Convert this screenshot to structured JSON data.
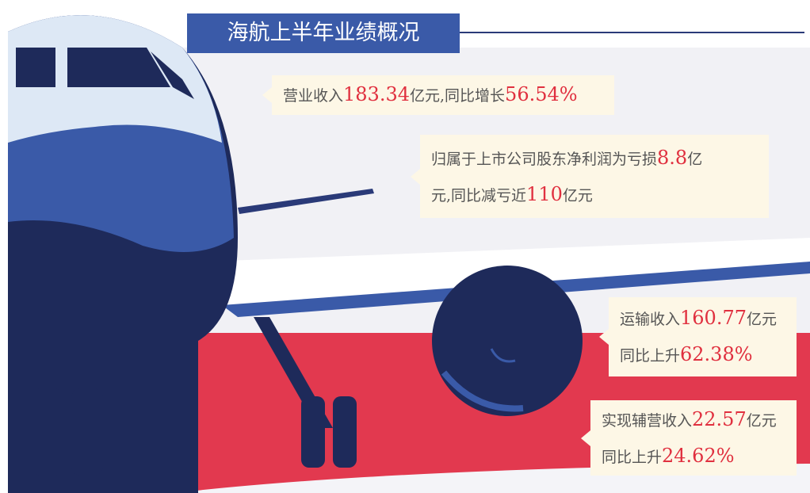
{
  "title": "海航上半年业绩概况",
  "items": [
    {
      "lines": [
        [
          "营业收入",
          "183.34",
          "亿元,同比增长",
          "56.54%"
        ]
      ]
    },
    {
      "lines": [
        [
          "归属于上市公司股东净利润为亏损",
          "8.8",
          "亿"
        ],
        [
          "元,同比减亏近",
          "110",
          "亿元"
        ]
      ]
    },
    {
      "lines": [
        [
          "运输收入",
          "160.77",
          "亿元"
        ],
        [
          "同比上升",
          "62.38%"
        ]
      ]
    },
    {
      "lines": [
        [
          "实现辅营收入",
          "22.57",
          "亿元"
        ],
        [
          "同比上升",
          "24.62%"
        ]
      ]
    }
  ]
}
